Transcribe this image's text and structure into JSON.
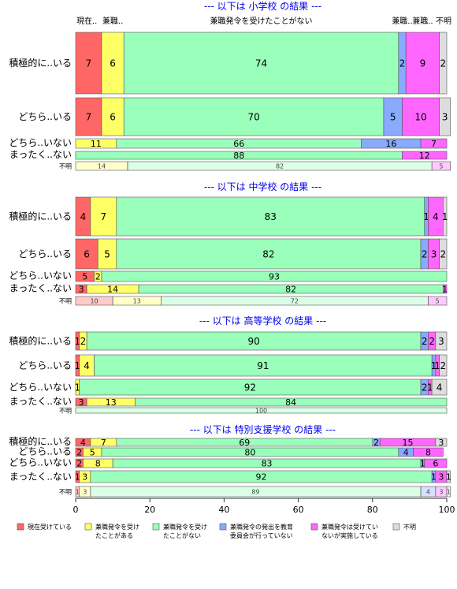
{
  "chart_data": {
    "type": "bar",
    "orientation": "horizontal",
    "stacked": "percent",
    "xlim": [
      0,
      100
    ],
    "x_ticks": [
      0,
      20,
      40,
      60,
      80,
      100
    ],
    "colors": [
      "#ff6666",
      "#ffff66",
      "#99ffbb",
      "#88aaff",
      "#ff66ff",
      "#dddddd"
    ],
    "legend_position": "bottom",
    "legend": [
      "現在受けている",
      "兼職発令を受けたことがある",
      "兼職発令を受けたことがない",
      "兼職発令の発出を教育委員会が行っていない",
      "兼職発令は受けていないが実施している",
      "不明"
    ],
    "legend_display": [
      [
        "現在受けている"
      ],
      [
        "兼職発令を受け",
        "たことがある"
      ],
      [
        "兼職発令を受け",
        "たことがない"
      ],
      [
        "兼職発令の発出を教育",
        "委員会が行っていない"
      ],
      [
        "兼職発令は受けてい",
        "ないが実施している"
      ],
      [
        "不明"
      ]
    ],
    "top_category_labels": [
      "現在..",
      "兼職..",
      "兼職発令を受けたことがない",
      "兼職..",
      "兼職..",
      "不明"
    ],
    "panels": [
      {
        "title": "--- 以下は 小学校 の結果 ---",
        "rows": [
          {
            "label": "積極的に..いる",
            "values": [
              7,
              6,
              74,
              2,
              9,
              2
            ]
          },
          {
            "label": "どちら..いる",
            "values": [
              7,
              6,
              70,
              5,
              10,
              3
            ]
          },
          {
            "label": "どちら..いない",
            "values": [
              0,
              11,
              66,
              16,
              7,
              0
            ]
          },
          {
            "label": "まったく..ない",
            "values": [
              0,
              0,
              88,
              0,
              12,
              0
            ]
          },
          {
            "label": "不明",
            "values": [
              0,
              14,
              82,
              0,
              5,
              0
            ]
          }
        ]
      },
      {
        "title": "--- 以下は 中学校 の結果 ---",
        "rows": [
          {
            "label": "積極的に..いる",
            "values": [
              4,
              7,
              83,
              1,
              4,
              1
            ]
          },
          {
            "label": "どちら..いる",
            "values": [
              6,
              5,
              82,
              2,
              3,
              2
            ]
          },
          {
            "label": "どちら..いない",
            "values": [
              5,
              2,
              93,
              0,
              0,
              0
            ]
          },
          {
            "label": "まったく..ない",
            "values": [
              3,
              14,
              82,
              0,
              1,
              0
            ]
          },
          {
            "label": "不明",
            "values": [
              10,
              13,
              72,
              0,
              5,
              0
            ]
          }
        ]
      },
      {
        "title": "--- 以下は 高等学校 の結果 ---",
        "rows": [
          {
            "label": "積極的に..いる",
            "values": [
              1,
              2,
              90,
              2,
              2,
              3
            ]
          },
          {
            "label": "どちら..いる",
            "values": [
              1,
              4,
              91,
              1,
              1,
              2
            ]
          },
          {
            "label": "どちら..いない",
            "values": [
              0,
              1,
              92,
              2,
              1,
              4
            ]
          },
          {
            "label": "まったく..ない",
            "values": [
              3,
              13,
              84,
              0,
              0,
              0
            ]
          },
          {
            "label": "不明",
            "values": [
              0,
              0,
              100,
              0,
              0,
              0
            ]
          }
        ]
      },
      {
        "title": "--- 以下は 特別支援学校 の結果 ---",
        "rows": [
          {
            "label": "積極的に..いる",
            "values": [
              4,
              7,
              69,
              2,
              15,
              3
            ]
          },
          {
            "label": "どちら..いる",
            "values": [
              2,
              5,
              80,
              4,
              8,
              0
            ]
          },
          {
            "label": "どちら..いない",
            "values": [
              2,
              8,
              83,
              1,
              6,
              0
            ]
          },
          {
            "label": "まったく..ない",
            "values": [
              1,
              3,
              92,
              1,
              3,
              1
            ]
          },
          {
            "label": "不明",
            "values": [
              1,
              3,
              89,
              4,
              3,
              1
            ]
          }
        ]
      }
    ]
  }
}
